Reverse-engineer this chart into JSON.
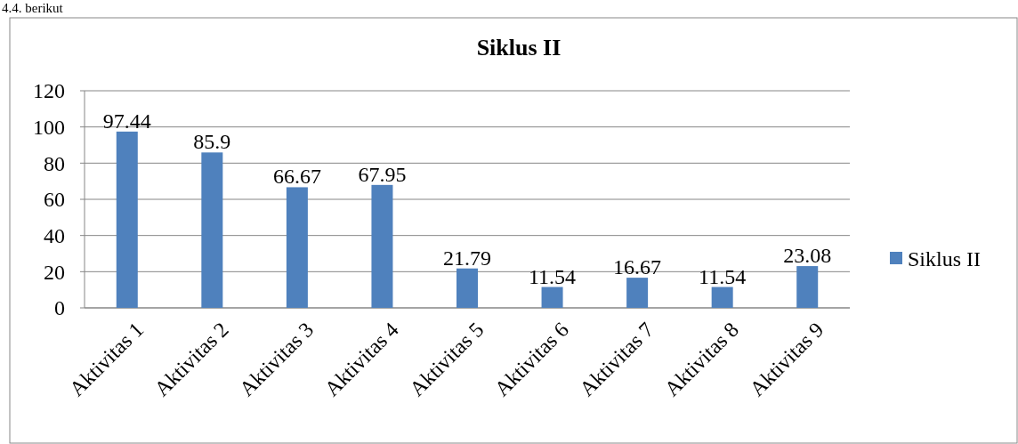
{
  "chart_data": {
    "type": "bar",
    "title": "Siklus II",
    "annotations": [
      "4.4. berikut"
    ],
    "categories": [
      "Aktivitas 1",
      "Aktivitas 2",
      "Aktivitas 3",
      "Aktivitas 4",
      "Aktivitas 5",
      "Aktivitas 6",
      "Aktivitas 7",
      "Aktivitas 8",
      "Aktivitas 9"
    ],
    "series": [
      {
        "name": "Siklus II",
        "color": "#4f81bd",
        "values": [
          97.44,
          85.9,
          66.67,
          67.95,
          21.79,
          11.54,
          16.67,
          11.54,
          23.08
        ]
      }
    ],
    "ylim": [
      0,
      120
    ],
    "yticks": [
      0,
      20,
      40,
      60,
      80,
      100,
      120
    ],
    "grid": "y",
    "legend": "right",
    "data_labels": true
  }
}
